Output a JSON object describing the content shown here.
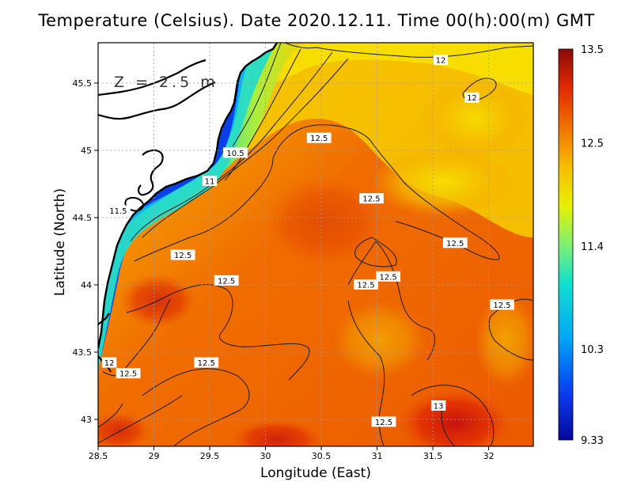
{
  "title": "Temperature (Celsius). Date 2020.12.11. Time 00(h):00(m) GMT",
  "depth_label": "Z = 2.5 m",
  "chart_data": {
    "type": "heatmap",
    "xlabel": "Longitude (East)",
    "ylabel": "Latitude (North)",
    "xlim": [
      28.5,
      32.4
    ],
    "ylim": [
      42.8,
      45.8
    ],
    "x_ticks": [
      "28.5",
      "29",
      "29.5",
      "30",
      "30.5",
      "31",
      "31.5",
      "32"
    ],
    "x_tick_values": [
      28.5,
      29,
      29.5,
      30,
      30.5,
      31,
      31.5,
      32
    ],
    "y_ticks": [
      "43",
      "43.5",
      "44",
      "44.5",
      "45",
      "45.5"
    ],
    "y_tick_values": [
      43,
      43.5,
      44,
      44.5,
      45,
      45.5
    ],
    "grid": true,
    "colorbar": {
      "min": 9.33,
      "max": 13.5,
      "tick_labels": [
        "13.5",
        "12.5",
        "11.4",
        "10.3",
        "9.33"
      ],
      "tick_values": [
        13.5,
        12.5,
        11.4,
        10.3,
        9.33
      ],
      "placement": "right"
    },
    "contour_labels": [
      {
        "text": "12",
        "lon": 31.57,
        "lat": 45.67
      },
      {
        "text": "12",
        "lon": 31.85,
        "lat": 45.39
      },
      {
        "text": "12.5",
        "lon": 30.48,
        "lat": 45.09
      },
      {
        "text": "10.5",
        "lon": 29.73,
        "lat": 44.98
      },
      {
        "text": "11",
        "lon": 29.5,
        "lat": 44.77
      },
      {
        "text": "11.5",
        "lon": 28.68,
        "lat": 44.55
      },
      {
        "text": "12.5",
        "lon": 30.95,
        "lat": 44.64
      },
      {
        "text": "12.5",
        "lon": 31.7,
        "lat": 44.31
      },
      {
        "text": "12.5",
        "lon": 29.26,
        "lat": 44.22
      },
      {
        "text": "12.5",
        "lon": 29.65,
        "lat": 44.03
      },
      {
        "text": "12.5",
        "lon": 30.9,
        "lat": 44.0
      },
      {
        "text": "12.5",
        "lon": 31.1,
        "lat": 44.06
      },
      {
        "text": "12.5",
        "lon": 32.12,
        "lat": 43.85
      },
      {
        "text": "12",
        "lon": 28.6,
        "lat": 43.42
      },
      {
        "text": "12.5",
        "lon": 28.77,
        "lat": 43.34
      },
      {
        "text": "12.5",
        "lon": 29.47,
        "lat": 43.42
      },
      {
        "text": "13",
        "lon": 31.55,
        "lat": 43.1
      },
      {
        "text": "12.5",
        "lon": 31.06,
        "lat": 42.98
      }
    ]
  },
  "colors": {
    "cold": "#0a0f9a",
    "warm": "#c41414",
    "land": "#ffffff",
    "coast": "#000000"
  }
}
